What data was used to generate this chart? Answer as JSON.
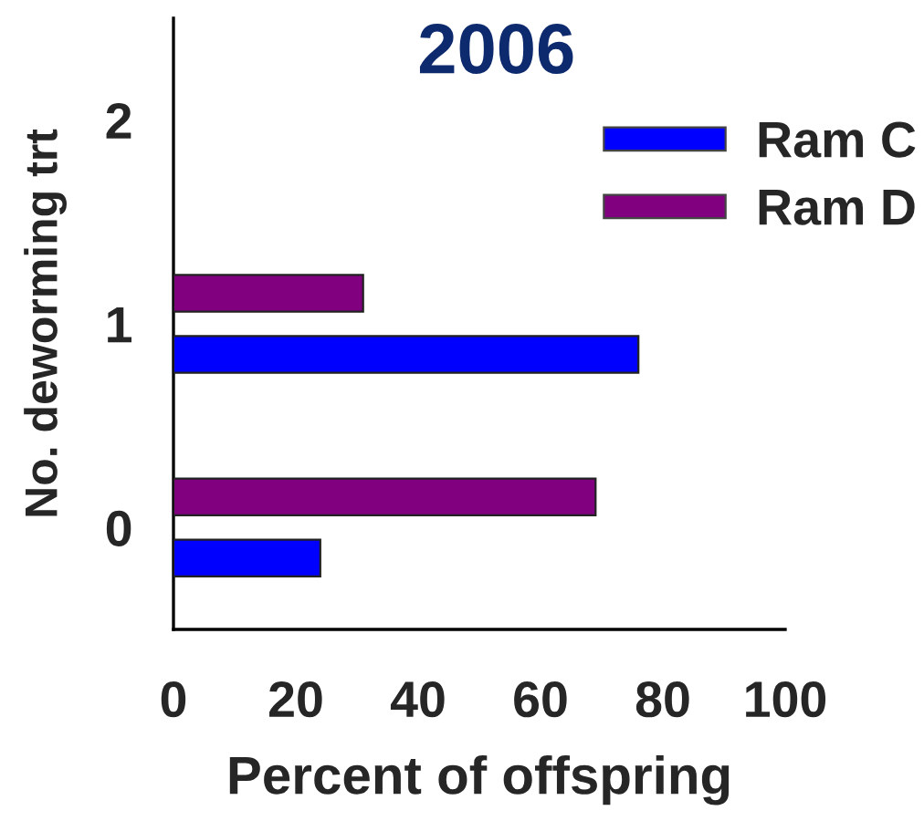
{
  "chart_data": {
    "type": "bar",
    "orientation": "horizontal",
    "title": "2006",
    "xlabel": "Percent of offspring",
    "ylabel": "No. deworming trt",
    "categories": [
      "2",
      "1",
      "0"
    ],
    "series": [
      {
        "name": "Ram C",
        "color": "#0000ff",
        "values": [
          null,
          76,
          24
        ]
      },
      {
        "name": "Ram D",
        "color": "#800080",
        "values": [
          null,
          31,
          69
        ]
      }
    ],
    "xlim": [
      0,
      100
    ],
    "xticks": [
      0,
      20,
      40,
      60,
      80,
      100
    ],
    "legend": "top right"
  }
}
